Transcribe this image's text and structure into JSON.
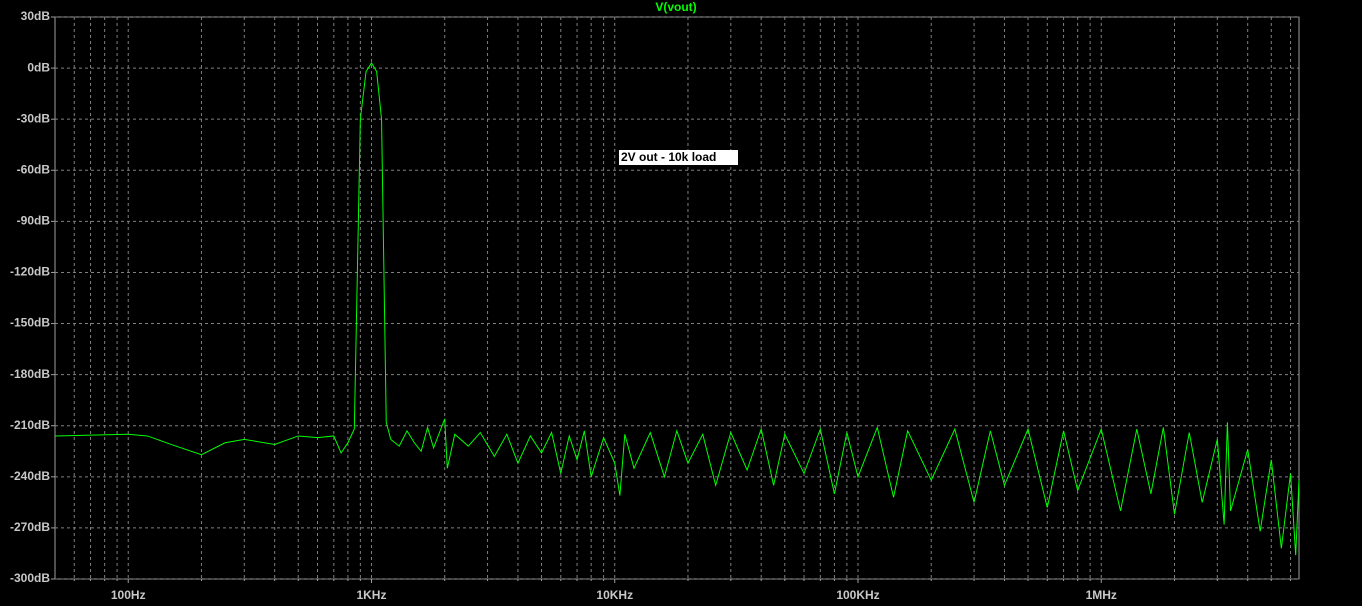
{
  "chart_data": {
    "type": "line",
    "title": "V(vout)",
    "annotation": "2V out - 10k load",
    "xscale": "log",
    "grid": true,
    "color": "#00ff00",
    "xlim": [
      50,
      6500000
    ],
    "ylim": [
      -300,
      30
    ],
    "xticks": [
      {
        "value": 100,
        "label": "100Hz"
      },
      {
        "value": 1000,
        "label": "1KHz"
      },
      {
        "value": 10000,
        "label": "10KHz"
      },
      {
        "value": 100000,
        "label": "100KHz"
      },
      {
        "value": 1000000,
        "label": "1MHz"
      }
    ],
    "xminorticks": [
      60,
      70,
      80,
      90,
      200,
      300,
      400,
      500,
      600,
      700,
      800,
      900,
      2000,
      3000,
      4000,
      5000,
      6000,
      7000,
      8000,
      9000,
      20000,
      30000,
      40000,
      50000,
      60000,
      70000,
      80000,
      90000,
      200000,
      300000,
      400000,
      500000,
      600000,
      700000,
      800000,
      900000,
      2000000,
      3000000,
      4000000,
      5000000,
      6000000
    ],
    "yticks": [
      {
        "value": 30,
        "label": "30dB"
      },
      {
        "value": 0,
        "label": "0dB"
      },
      {
        "value": -30,
        "label": "-30dB"
      },
      {
        "value": -60,
        "label": "-60dB"
      },
      {
        "value": -90,
        "label": "-90dB"
      },
      {
        "value": -120,
        "label": "-120dB"
      },
      {
        "value": -150,
        "label": "-150dB"
      },
      {
        "value": -180,
        "label": "-180dB"
      },
      {
        "value": -210,
        "label": "-210dB"
      },
      {
        "value": -240,
        "label": "-240dB"
      },
      {
        "value": -270,
        "label": "-270dB"
      },
      {
        "value": -300,
        "label": "-300dB"
      }
    ],
    "x": [
      50,
      100,
      120,
      150,
      200,
      250,
      300,
      400,
      500,
      600,
      700,
      750,
      800,
      850,
      900,
      950,
      1000,
      1050,
      1100,
      1150,
      1200,
      1300,
      1400,
      1500,
      1600,
      1700,
      1800,
      2000,
      2050,
      2200,
      2500,
      2800,
      3200,
      3600,
      4000,
      4500,
      5000,
      5500,
      6000,
      6500,
      7000,
      7500,
      8000,
      9000,
      10000,
      10500,
      11000,
      12000,
      14000,
      16000,
      18000,
      20000,
      23000,
      26000,
      30000,
      35000,
      40000,
      45000,
      50000,
      60000,
      70000,
      80000,
      90000,
      100000,
      120000,
      140000,
      160000,
      200000,
      250000,
      300000,
      350000,
      400000,
      500000,
      600000,
      700000,
      800000,
      1000000,
      1200000,
      1400000,
      1600000,
      1800000,
      2000000,
      2300000,
      2600000,
      3000000,
      3200000,
      3300000,
      3400000,
      4000000,
      4500000,
      5000000,
      5500000,
      6000000,
      6300000,
      6500000
    ],
    "values": [
      -216,
      -215,
      -216,
      -221,
      -227,
      -220,
      -218,
      -221,
      -216,
      -217,
      -216,
      -226,
      -220,
      -212,
      -30,
      -2,
      3,
      -2,
      -30,
      -208,
      -218,
      -222,
      -213,
      -220,
      -225,
      -211,
      -223,
      -206,
      -235,
      -215,
      -222,
      -214,
      -228,
      -215,
      -232,
      -216,
      -226,
      -214,
      -238,
      -216,
      -230,
      -213,
      -240,
      -217,
      -232,
      -251,
      -215,
      -235,
      -214,
      -240,
      -213,
      -232,
      -215,
      -245,
      -214,
      -236,
      -212,
      -245,
      -215,
      -238,
      -212,
      -250,
      -214,
      -240,
      -211,
      -252,
      -213,
      -242,
      -212,
      -255,
      -213,
      -245,
      -212,
      -258,
      -213,
      -248,
      -212,
      -260,
      -212,
      -250,
      -211,
      -262,
      -214,
      -255,
      -218,
      -268,
      -208,
      -260,
      -224,
      -272,
      -230,
      -282,
      -238,
      -286,
      -242
    ]
  }
}
